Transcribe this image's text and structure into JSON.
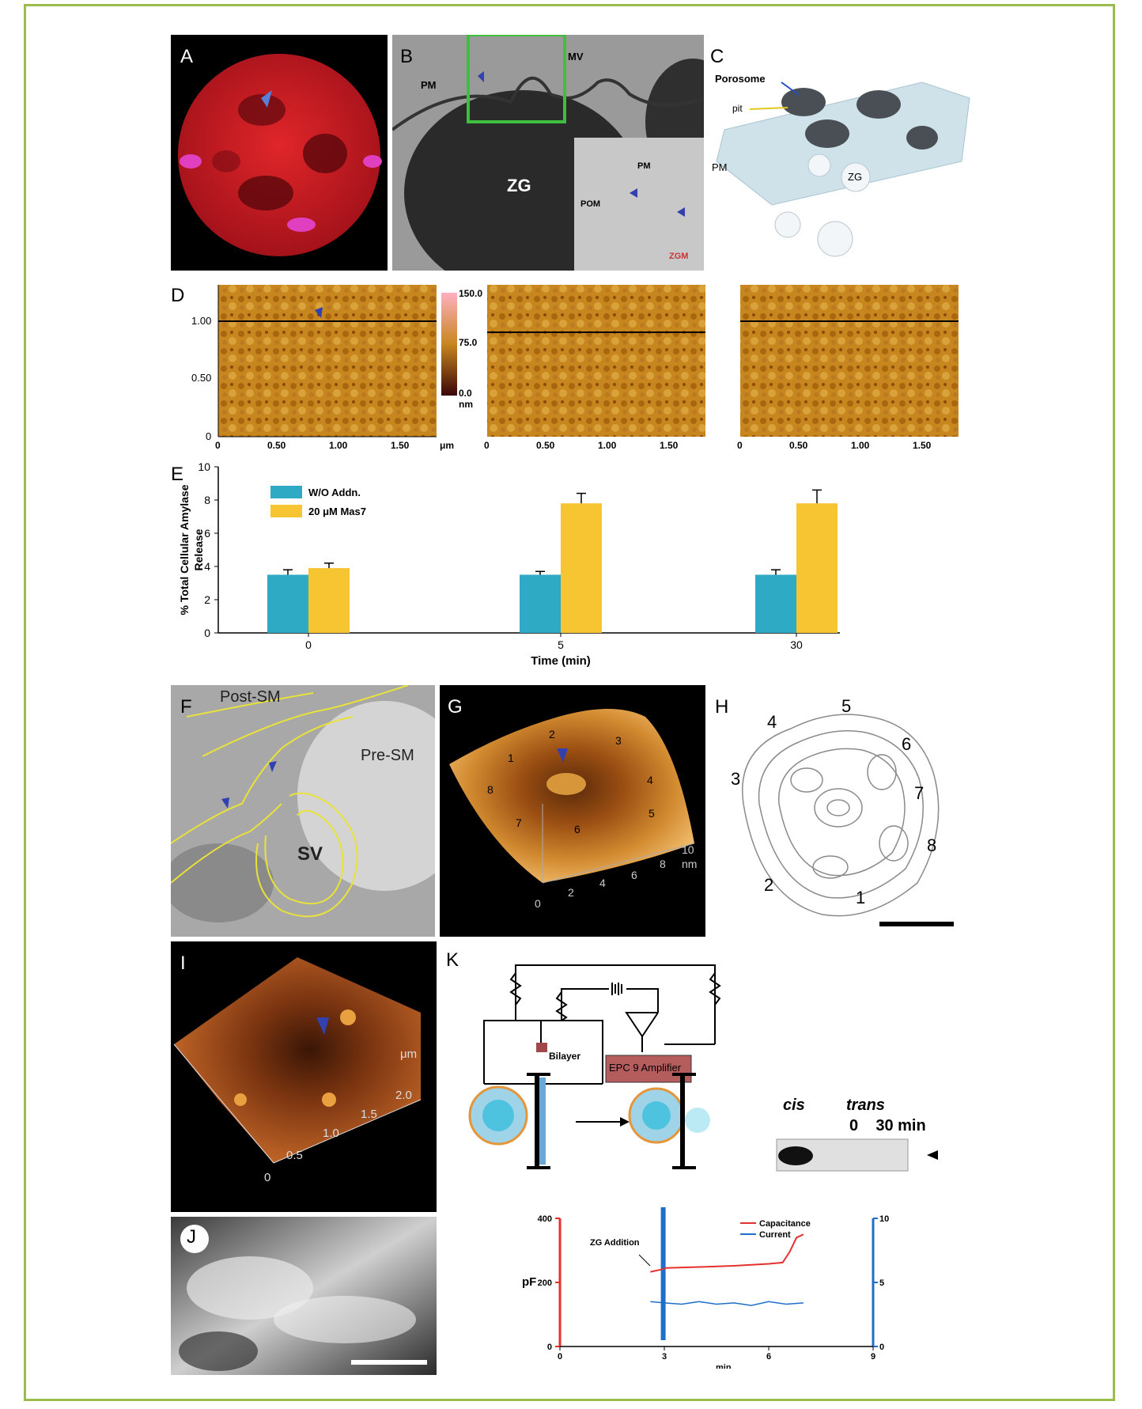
{
  "panels": {
    "A": {
      "label": "A"
    },
    "B": {
      "label": "B",
      "pm": "PM",
      "mv": "MV",
      "zg": "ZG",
      "inset_pm": "PM",
      "inset_pom": "POM",
      "inset_zgm": "ZGM"
    },
    "C": {
      "label": "C",
      "porosome": "Porosome",
      "pit": "pit",
      "pm": "PM",
      "zg": "ZG"
    },
    "D": {
      "label": "D",
      "y_ticks": [
        "1.00",
        "0.50",
        "0"
      ],
      "x_ticks": [
        "0",
        "0.50",
        "1.00",
        "1.50"
      ],
      "x_unit": "μm",
      "scale_ticks": [
        "150.0",
        "75.0",
        "0.0"
      ],
      "scale_unit": "nm"
    },
    "E": {
      "label": "E"
    },
    "F": {
      "label": "F",
      "post_sm": "Post-SM",
      "pre_sm": "Pre-SM",
      "sv": "SV"
    },
    "G": {
      "label": "G",
      "numbers": [
        "1",
        "2",
        "3",
        "4",
        "5",
        "6",
        "7",
        "8"
      ],
      "axis_ticks": [
        "0",
        "2",
        "4",
        "6",
        "8",
        "10"
      ],
      "axis_unit": "nm"
    },
    "H": {
      "label": "H",
      "numbers": [
        "1",
        "2",
        "3",
        "4",
        "5",
        "6",
        "7",
        "8"
      ]
    },
    "I": {
      "label": "I",
      "axis_ticks": [
        "0",
        "0.5",
        "1.0",
        "1.5",
        "2.0"
      ],
      "axis_unit": "μm"
    },
    "J": {
      "label": "J"
    },
    "K": {
      "label": "K",
      "bilayer": "Bilayer",
      "amplifier": "EPC 9 Amplifier",
      "cis": "cis",
      "trans": "trans",
      "trans_times": "0    30 min",
      "zg_addition": "ZG Addition",
      "y_label": "pF",
      "left_ticks": [
        "400",
        "200",
        "0"
      ],
      "right_ticks": [
        "10",
        "5",
        "0"
      ],
      "x_ticks": [
        "0",
        "3",
        "6",
        "9"
      ],
      "x_label": "min"
    }
  },
  "chart_data": [
    {
      "type": "bar",
      "title": "",
      "categories": [
        "0",
        "5",
        "30"
      ],
      "xlabel": "Time (min)",
      "ylabel": "% Total Cellular Amylase Release",
      "ylim": [
        0,
        10
      ],
      "yticks": [
        "0",
        "2",
        "4",
        "6",
        "8",
        "10"
      ],
      "legend": "top-left",
      "series": [
        {
          "name": "W/O Addn.",
          "values": [
            3.5,
            3.5,
            3.5
          ],
          "errors": [
            0.3,
            0.2,
            0.3
          ],
          "color": "#2eaac4"
        },
        {
          "name": "20 μM Mas7",
          "values": [
            3.9,
            7.8,
            7.8
          ],
          "errors": [
            0.3,
            0.6,
            0.8
          ],
          "color": "#f7c531"
        }
      ]
    },
    {
      "type": "line",
      "title": "",
      "xlabel": "min",
      "ylabel": "pF",
      "xlim": [
        0,
        9
      ],
      "ylim": [
        0,
        400
      ],
      "y2lim": [
        0,
        10
      ],
      "legend": "top-right",
      "series": [
        {
          "name": "Capacitance",
          "color": "#e5312e",
          "x": [
            2.6,
            2.9,
            3.05,
            4.0,
            5.0,
            6.0,
            6.4,
            6.6,
            6.8,
            7.0
          ],
          "values": [
            233,
            240,
            245,
            248,
            252,
            258,
            262,
            295,
            340,
            350
          ]
        },
        {
          "name": "Current",
          "color": "#1f6fc8",
          "x": [
            2.6,
            3.0,
            3.5,
            4.0,
            4.5,
            5.0,
            5.5,
            6.0,
            6.5,
            7.0
          ],
          "values": [
            3.5,
            3.4,
            3.3,
            3.5,
            3.3,
            3.4,
            3.2,
            3.5,
            3.3,
            3.4
          ]
        }
      ],
      "annotations": [
        "ZG Addition"
      ]
    }
  ]
}
